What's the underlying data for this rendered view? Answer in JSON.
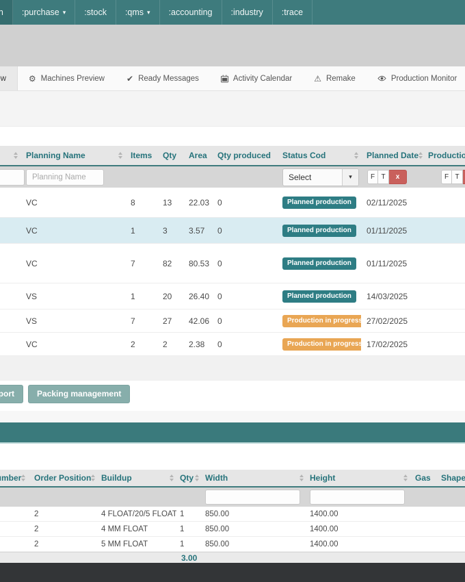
{
  "navbar": {
    "items": [
      {
        "label": ":production",
        "active": true,
        "caret": false
      },
      {
        "label": ":purchase",
        "active": false,
        "caret": true
      },
      {
        "label": ":stock",
        "active": false,
        "caret": false
      },
      {
        "label": ":qms",
        "active": false,
        "caret": true
      },
      {
        "label": ":accounting",
        "active": false,
        "caret": false
      },
      {
        "label": ":industry",
        "active": false,
        "caret": false
      },
      {
        "label": ":trace",
        "active": false,
        "caret": false
      }
    ]
  },
  "tabs": [
    {
      "label": "Preview",
      "icon": "none",
      "active": true
    },
    {
      "label": "Machines Preview",
      "icon": "gears",
      "active": false
    },
    {
      "label": "Ready Messages",
      "icon": "check",
      "active": false
    },
    {
      "label": "Activity Calendar",
      "icon": "calendar",
      "active": false
    },
    {
      "label": "Remake",
      "icon": "warning",
      "active": false
    },
    {
      "label": "Production Monitor",
      "icon": "eye",
      "active": false
    }
  ],
  "planning_table": {
    "headers": {
      "planning_name": "Planning Name",
      "items": "Items",
      "qty": "Qty",
      "area": "Area",
      "qty_produced": "Qty produced",
      "status_cod": "Status Cod",
      "planned_date": "Planned Date",
      "production_date": "Production"
    },
    "filters": {
      "planning_name_placeholder": "Planning Name",
      "status_select_value": "Select",
      "date_from": "F",
      "date_to": "T",
      "date_clear": "x"
    },
    "statuses": {
      "planned": {
        "label": "Planned production",
        "color": "#2e7d84"
      },
      "in_progress": {
        "label": "Production in progress",
        "color": "#e9a654"
      }
    },
    "rows": [
      {
        "planning_name": "VC",
        "items": "8",
        "qty": "13",
        "area": "22.03",
        "qty_produced": "0",
        "status": "planned",
        "planned_date": "02/11/2025",
        "highlighted": false
      },
      {
        "planning_name": "VC",
        "items": "1",
        "qty": "3",
        "area": "3.57",
        "qty_produced": "0",
        "status": "planned",
        "planned_date": "01/11/2025",
        "highlighted": true
      },
      {
        "planning_name": "VC",
        "items": "7",
        "qty": "82",
        "area": "80.53",
        "qty_produced": "0",
        "status": "planned",
        "planned_date": "01/11/2025",
        "highlighted": false
      },
      {
        "planning_name": "VS",
        "items": "1",
        "qty": "20",
        "area": "26.40",
        "qty_produced": "0",
        "status": "planned",
        "planned_date": "14/03/2025",
        "highlighted": false
      },
      {
        "planning_name": "VS",
        "items": "7",
        "qty": "27",
        "area": "42.06",
        "qty_produced": "0",
        "status": "in_progress",
        "planned_date": "27/02/2025",
        "highlighted": false
      },
      {
        "planning_name": "VC",
        "items": "2",
        "qty": "2",
        "area": "2.38",
        "qty_produced": "0",
        "status": "in_progress",
        "planned_date": "17/02/2025",
        "highlighted": false
      }
    ]
  },
  "actions": {
    "export_label": "Export",
    "packing_label": "Packing management"
  },
  "items_table": {
    "headers": {
      "number": "Number",
      "order_position": "Order Position",
      "buildup": "Buildup",
      "qty": "Qty",
      "width": "Width",
      "height": "Height",
      "gas": "Gas",
      "shapes": "Shapes"
    },
    "rows": [
      {
        "order_position": "2",
        "buildup": "4 FLOAT/20/5 FLOAT",
        "qty": "1",
        "width": "850.00",
        "height": "1400.00"
      },
      {
        "order_position": "2",
        "buildup": "4 MM FLOAT",
        "qty": "1",
        "width": "850.00",
        "height": "1400.00"
      },
      {
        "order_position": "2",
        "buildup": "5 MM FLOAT",
        "qty": "1",
        "width": "850.00",
        "height": "1400.00"
      }
    ],
    "qty_total": "3.00"
  }
}
